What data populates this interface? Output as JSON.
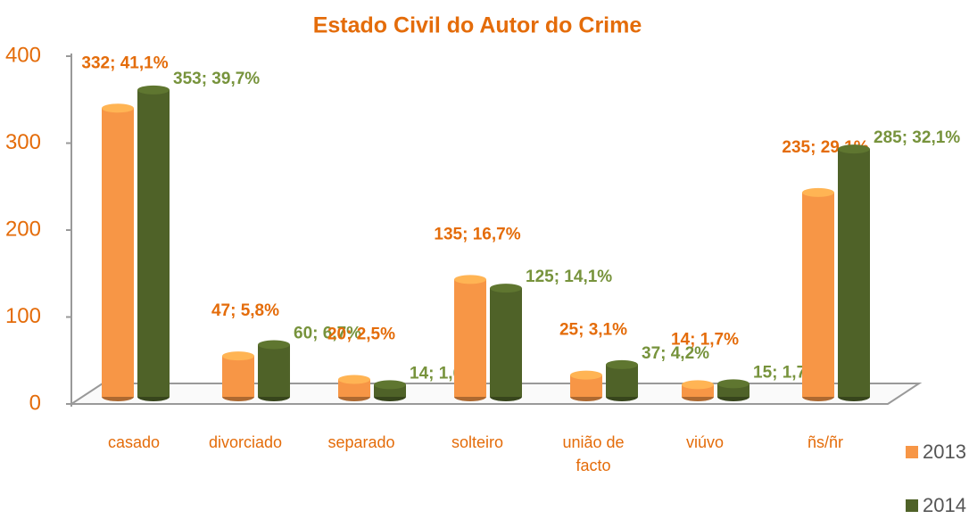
{
  "chart_data": {
    "type": "bar3d",
    "title": "Estado Civil do Autor do Crime",
    "categories": [
      "casado",
      "divorciado",
      "separado",
      "solteiro",
      "união de facto",
      "viúvo",
      "ñs/ñr"
    ],
    "series": [
      {
        "name": "2013",
        "color": "#f79646",
        "label_color": "#e46c0a",
        "values": [
          332,
          47,
          20,
          135,
          25,
          14,
          235
        ],
        "value_labels": [
          "332; 41,1%",
          "47; 5,8%",
          "20; 2,5%",
          "135; 16,7%",
          "25; 3,1%",
          "14; 1,7%",
          "235; 29,1%"
        ]
      },
      {
        "name": "2014",
        "color": "#4f6228",
        "label_color": "#77933c",
        "values": [
          353,
          60,
          14,
          125,
          37,
          15,
          285
        ],
        "value_labels": [
          "353; 39,7%",
          "60; 6,7%",
          "14; 1,6%",
          "125; 14,1%",
          "37; 4,2%",
          "15; 1,7%",
          "285; 32,1%"
        ]
      }
    ],
    "ylim": [
      0,
      400
    ],
    "yticks": [
      0,
      100,
      200,
      300,
      400
    ],
    "legend": "bottom-right"
  }
}
